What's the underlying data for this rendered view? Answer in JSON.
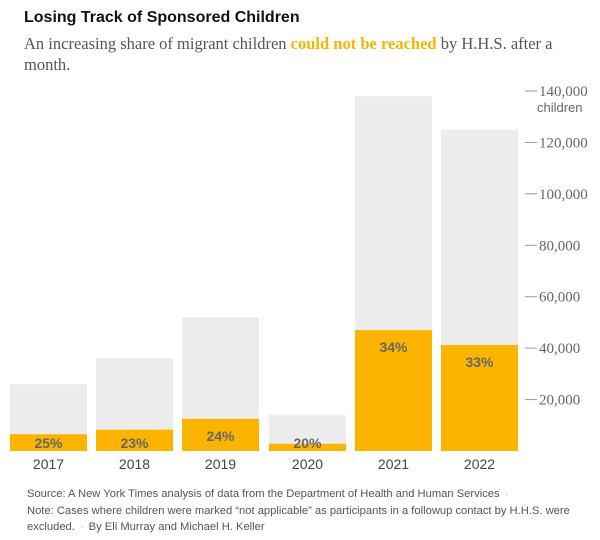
{
  "header": {
    "title": "Losing Track of Sponsored Children",
    "subtitle_before": "An increasing share of migrant children ",
    "subtitle_highlight": "could not be reached",
    "subtitle_after": " by H.H.S. after a month."
  },
  "footer": {
    "source": "Source: A New York Times analysis of data from the Department of Health and Human Services",
    "note": "Note: Cases where children were marked “not applicable” as participants in a followup contact by H.H.S. were excluded.",
    "credit": "By Eli Murray and Michael H. Keller"
  },
  "colors": {
    "total": "#ececec",
    "not_reached": "#fbb400",
    "axis_text": "#666666",
    "pct_label": "#666666"
  },
  "chart_data": {
    "type": "bar",
    "categories": [
      "2017",
      "2018",
      "2019",
      "2020",
      "2021",
      "2022"
    ],
    "series": [
      {
        "name": "",
        "values": [
          26000,
          36000,
          52000,
          14000,
          138000,
          125000
        ]
      },
      {
        "name": "could not be reached",
        "values": [
          6500,
          8300,
          12500,
          2800,
          47000,
          41200
        ]
      }
    ],
    "data_labels": [
      "25%",
      "23%",
      "24%",
      "20%",
      "34%",
      "33%"
    ],
    "y_ticks": [
      20000,
      40000,
      60000,
      80000,
      100000,
      120000,
      140000
    ],
    "y_tick_labels": [
      "20,000",
      "40,000",
      "60,000",
      "80,000",
      "100,000",
      "120,000",
      "140,000"
    ],
    "y_unit_label": "children",
    "ylim": [
      0,
      140000
    ],
    "y_axis_side": "right",
    "grid": false
  }
}
